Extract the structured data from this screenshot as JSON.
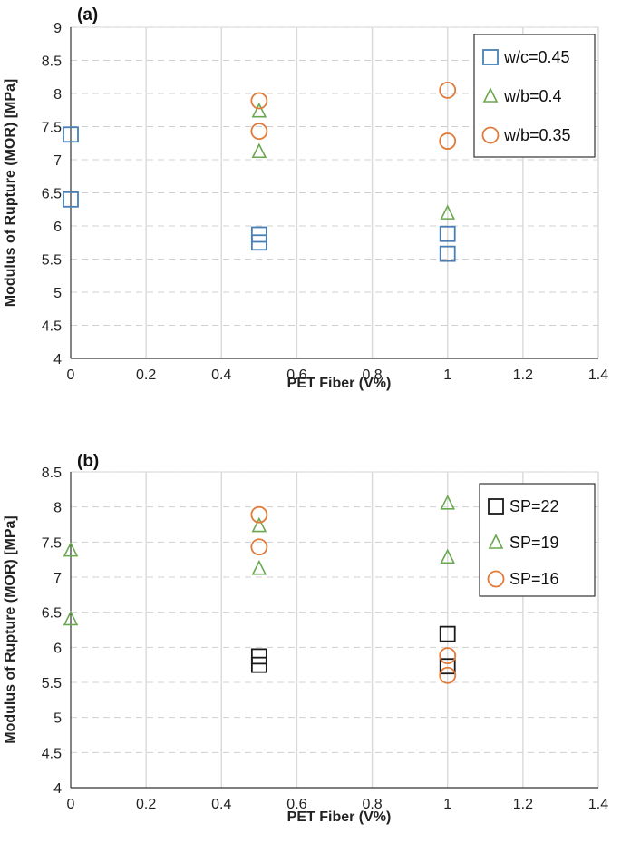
{
  "chart_data": [
    {
      "panel": "(a)",
      "type": "scatter",
      "title": "",
      "xlabel": "PET Fiber (V%)",
      "ylabel": "Modulus of Rupture (MOR) [MPa]",
      "xlim": [
        0,
        1.4
      ],
      "ylim": [
        4,
        9
      ],
      "xticks": [
        "0",
        "0.2",
        "0.4",
        "0.6",
        "0.8",
        "1",
        "1.2",
        "1.4"
      ],
      "yticks": [
        "4",
        "4.5",
        "5",
        "5.5",
        "6",
        "6.5",
        "7",
        "7.5",
        "8",
        "8.5",
        "9"
      ],
      "grid": "vertical solid, horizontal dashed",
      "legend_position": "top-right",
      "series": [
        {
          "name": "w/c=0.45",
          "marker": "square",
          "color": "#4a7fb5",
          "points": [
            [
              0,
              7.38
            ],
            [
              0,
              6.4
            ],
            [
              0.5,
              5.87
            ],
            [
              0.5,
              5.75
            ],
            [
              1,
              5.88
            ],
            [
              1,
              5.58
            ]
          ]
        },
        {
          "name": "w/b=0.4",
          "marker": "triangle",
          "color": "#6aa84f",
          "points": [
            [
              0.5,
              7.73
            ],
            [
              0.5,
              7.12
            ],
            [
              1,
              6.19
            ]
          ]
        },
        {
          "name": "w/b=0.35",
          "marker": "circle",
          "color": "#e07b39",
          "points": [
            [
              0.5,
              7.89
            ],
            [
              0.5,
              7.43
            ],
            [
              1,
              8.05
            ],
            [
              1,
              7.28
            ]
          ]
        }
      ]
    },
    {
      "panel": "(b)",
      "type": "scatter",
      "title": "",
      "xlabel": "PET Fiber (V%)",
      "ylabel": "Modulus of Rupture (MOR) [MPa]",
      "xlim": [
        0,
        1.4
      ],
      "ylim": [
        4,
        8.5
      ],
      "xticks": [
        "0",
        "0.2",
        "0.4",
        "0.6",
        "0.8",
        "1",
        "1.2",
        "1.4"
      ],
      "yticks": [
        "4",
        "4.5",
        "5",
        "5.5",
        "6",
        "6.5",
        "7",
        "7.5",
        "8",
        "8.5"
      ],
      "grid": "vertical solid, horizontal dashed",
      "legend_position": "top-right",
      "series": [
        {
          "name": "SP=22",
          "marker": "square",
          "color": "#1a1a1a",
          "points": [
            [
              0.5,
              5.87
            ],
            [
              0.5,
              5.75
            ],
            [
              1,
              6.19
            ],
            [
              1,
              5.73
            ]
          ]
        },
        {
          "name": "SP=19",
          "marker": "triangle",
          "color": "#6aa84f",
          "points": [
            [
              0,
              7.38
            ],
            [
              0,
              6.4
            ],
            [
              0.5,
              7.73
            ],
            [
              0.5,
              7.12
            ],
            [
              1,
              8.05
            ],
            [
              1,
              7.28
            ]
          ]
        },
        {
          "name": "SP=16",
          "marker": "circle",
          "color": "#e07b39",
          "points": [
            [
              0.5,
              7.89
            ],
            [
              0.5,
              7.43
            ],
            [
              1,
              5.88
            ],
            [
              1,
              5.6
            ]
          ]
        }
      ]
    }
  ]
}
